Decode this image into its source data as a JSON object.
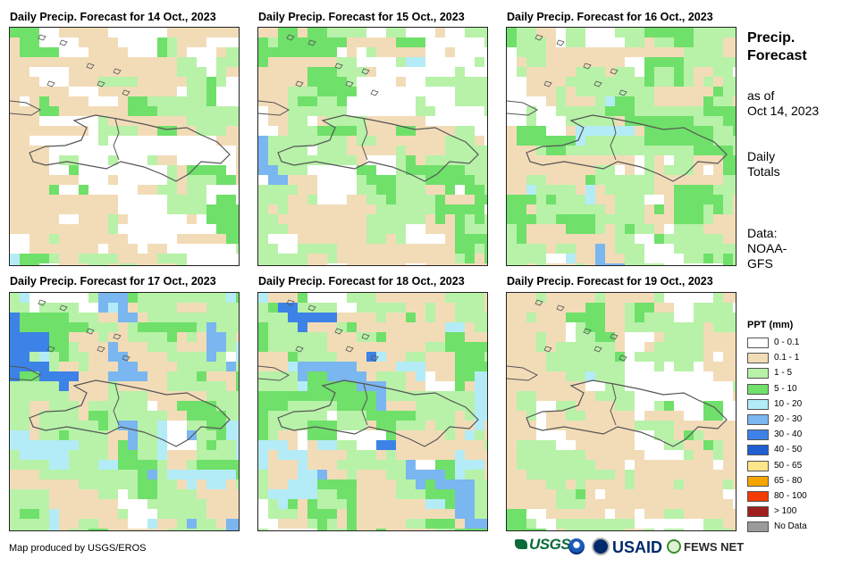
{
  "panels": [
    {
      "title": "Daily Precip. Forecast for 14 Oct., 2023"
    },
    {
      "title": "Daily Precip. Forecast for 15 Oct., 2023"
    },
    {
      "title": "Daily Precip. Forecast for 16 Oct., 2023"
    },
    {
      "title": "Daily Precip. Forecast for 17 Oct., 2023"
    },
    {
      "title": "Daily Precip. Forecast for 18 Oct., 2023"
    },
    {
      "title": "Daily Precip. Forecast for 19 Oct., 2023"
    }
  ],
  "sidebar": {
    "title_line1": "Precip.",
    "title_line2": "Forecast",
    "asof_line1": "as of",
    "asof_line2": "Oct 14, 2023",
    "totals_line1": "Daily",
    "totals_line2": "Totals",
    "data_line1": "Data:",
    "data_line2": "NOAA-",
    "data_line3": "GFS"
  },
  "legend": {
    "title": "PPT (mm)",
    "items": [
      {
        "label": "0 - 0.1",
        "color": "#ffffff"
      },
      {
        "label": "0.1 - 1",
        "color": "#f2dcb8"
      },
      {
        "label": "1 - 5",
        "color": "#b7f2a8"
      },
      {
        "label": "5 - 10",
        "color": "#6fe06a"
      },
      {
        "label": "10 - 20",
        "color": "#b3ecf6"
      },
      {
        "label": "20 - 30",
        "color": "#7ab6ef"
      },
      {
        "label": "30 - 40",
        "color": "#3d82e6"
      },
      {
        "label": "40 - 50",
        "color": "#1f5fd2"
      },
      {
        "label": "50 - 65",
        "color": "#fde58a"
      },
      {
        "label": "65 - 80",
        "color": "#f6a500"
      },
      {
        "label": "80 - 100",
        "color": "#f53a00"
      },
      {
        "label": "> 100",
        "color": "#a11e1e"
      },
      {
        "label": "No Data",
        "color": "#9a9a9a"
      }
    ]
  },
  "footer": {
    "credit": "Map produced by USGS/EROS"
  },
  "logos": {
    "usgs": "USGS",
    "usaid": "USAID",
    "fewsnet": "FEWS NET"
  }
}
